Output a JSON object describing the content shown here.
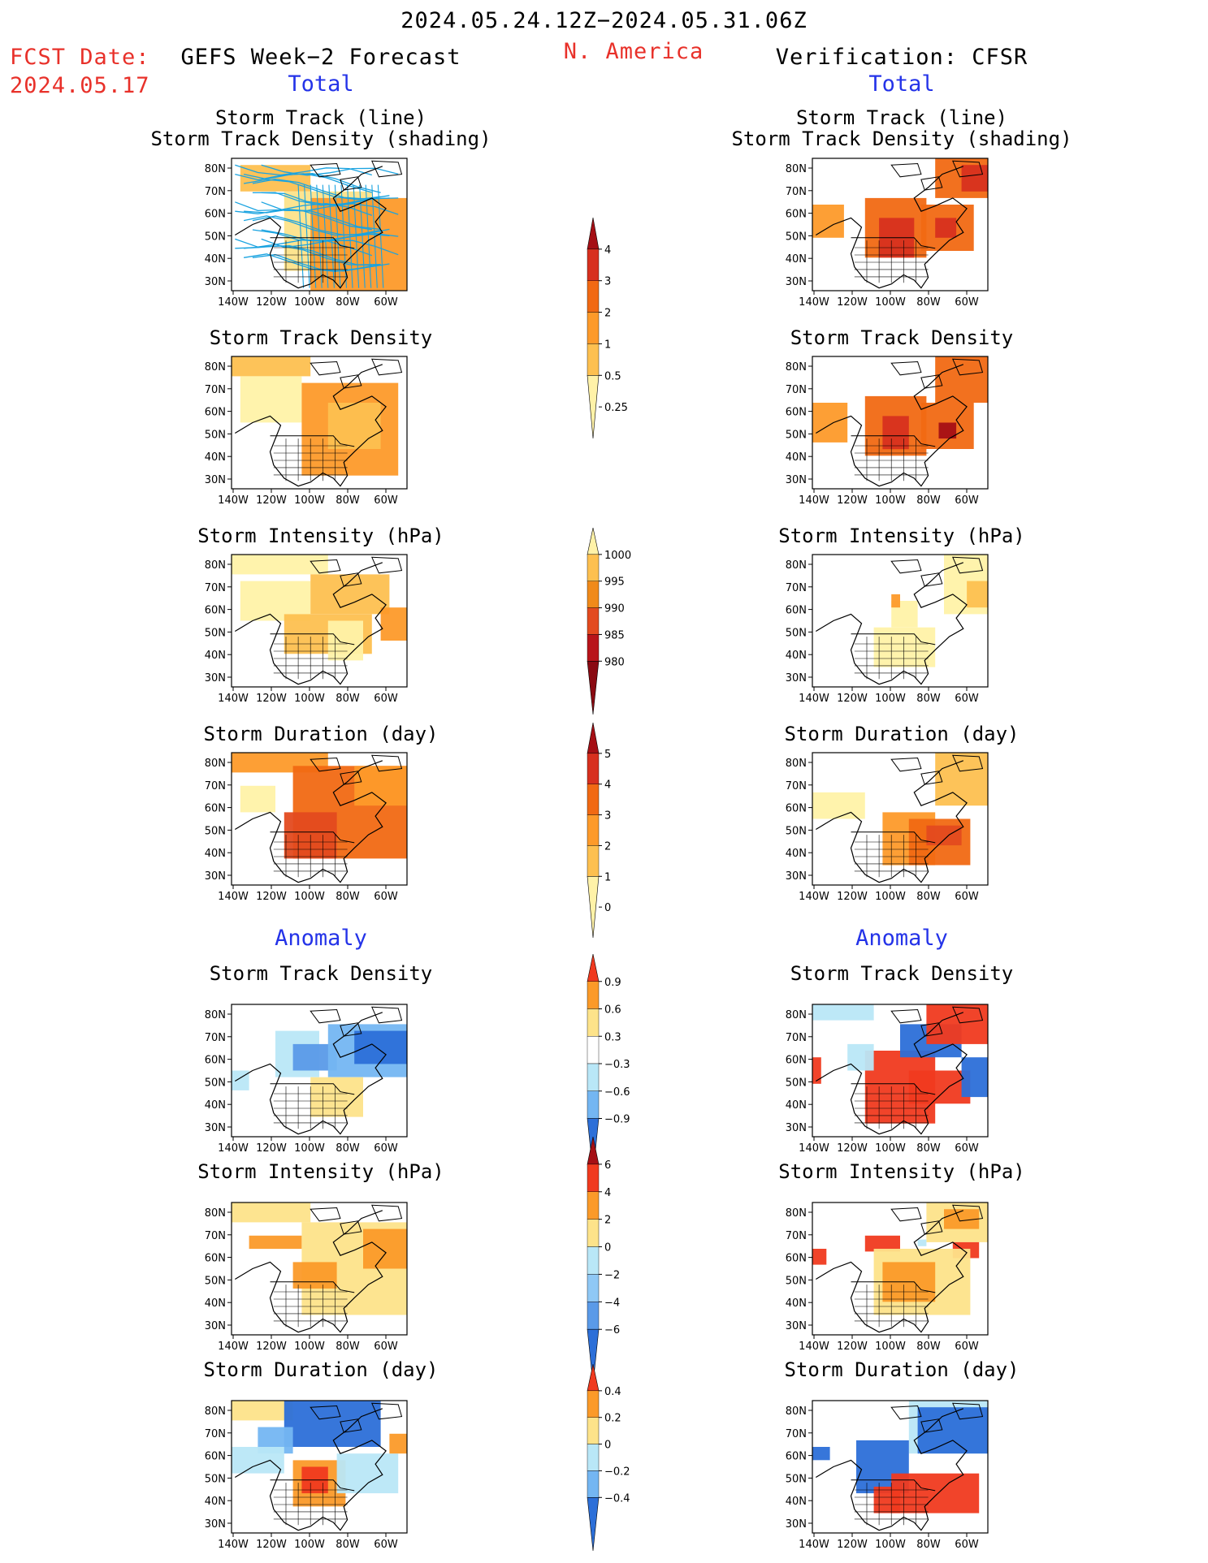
{
  "header": {
    "period": "2024.05.24.12Z−2024.05.31.06Z",
    "region": "N. America",
    "fcst_date_label": "FCST Date:",
    "fcst_date_value": "2024.05.17",
    "left_title": "GEFS Week−2 Forecast",
    "right_title": "Verification: CFSR"
  },
  "sections": {
    "total": "Total",
    "anomaly": "Anomaly"
  },
  "panel_titles": {
    "track_line": "Storm Track (line)",
    "track_shading": "Storm Track Density (shading)",
    "density": "Storm Track Density",
    "intensity": "Storm Intensity (hPa)",
    "duration": "Storm Duration (day)"
  },
  "axes": {
    "lat": [
      "80N",
      "70N",
      "60N",
      "50N",
      "40N",
      "30N"
    ],
    "lon": [
      "140W",
      "120W",
      "100W",
      "80W",
      "60W"
    ]
  },
  "colorbars": [
    {
      "labels": [
        "4",
        "3",
        "2",
        "1",
        "0.5",
        "0.25"
      ],
      "colors": [
        "#a50f15",
        "#d7301f",
        "#f16913",
        "#fd9a2a",
        "#fdc050",
        "#fff2a8"
      ]
    },
    {
      "labels": [
        "1000",
        "995",
        "990",
        "985",
        "980"
      ],
      "colors": [
        "#fff2a8",
        "#fdc050",
        "#f08a1a",
        "#e34a1f",
        "#b8141a",
        "#8a0a12"
      ]
    },
    {
      "labels": [
        "5",
        "4",
        "3",
        "2",
        "1",
        "0"
      ],
      "colors": [
        "#a50f15",
        "#d7301f",
        "#f16913",
        "#fd9a2a",
        "#fdc050",
        "#fff2a8"
      ]
    },
    {
      "labels": [
        "0.9",
        "0.6",
        "0.3",
        "−0.3",
        "−0.6",
        "−0.9"
      ],
      "colors": [
        "#f03a1f",
        "#fb9a29",
        "#fde38a",
        "#ffffff",
        "#b9e7f7",
        "#74b6f2",
        "#2c6fd8"
      ]
    },
    {
      "labels": [
        "6",
        "4",
        "2",
        "0",
        "−2",
        "−4",
        "−6"
      ],
      "colors": [
        "#a50f15",
        "#f03a1f",
        "#fb9a29",
        "#fde38a",
        "#b9e7f7",
        "#8fc8f5",
        "#5a9ae8",
        "#2c6fd8"
      ]
    },
    {
      "labels": [
        "0.4",
        "0.2",
        "0",
        "−0.2",
        "−0.4"
      ],
      "colors": [
        "#f03a1f",
        "#fb9a29",
        "#fde38a",
        "#b9e7f7",
        "#74b6f2",
        "#2c6fd8"
      ]
    }
  ],
  "colors": {
    "header_red": "#e8312a",
    "header_blue": "#2433e8",
    "track_line": "#1aa3e0"
  },
  "map_data": [
    {
      "key": "lt",
      "fills": [
        [
          0.05,
          0.05,
          0.4,
          0.2,
          "#fdc050"
        ],
        [
          0.3,
          0.25,
          0.5,
          0.6,
          "#fde38a"
        ],
        [
          0.45,
          0.3,
          0.55,
          0.7,
          "#fd9a2a"
        ]
      ],
      "tracks": true
    },
    {
      "key": "rt",
      "fills": [
        [
          0.0,
          0.35,
          0.18,
          0.25,
          "#fd9a2a"
        ],
        [
          0.3,
          0.3,
          0.35,
          0.45,
          "#f16913"
        ],
        [
          0.38,
          0.45,
          0.2,
          0.3,
          "#d7301f"
        ],
        [
          0.62,
          0.35,
          0.3,
          0.35,
          "#f16913"
        ],
        [
          0.7,
          0.45,
          0.12,
          0.15,
          "#d7301f"
        ],
        [
          0.7,
          0.0,
          0.3,
          0.3,
          "#f16913"
        ],
        [
          0.85,
          0.05,
          0.15,
          0.2,
          "#d7301f"
        ]
      ]
    },
    {
      "key": "ld",
      "fills": [
        [
          0.0,
          0.0,
          0.45,
          0.15,
          "#fdc050"
        ],
        [
          0.05,
          0.15,
          0.35,
          0.35,
          "#fff2a8"
        ],
        [
          0.4,
          0.2,
          0.55,
          0.7,
          "#fd9a2a"
        ],
        [
          0.55,
          0.35,
          0.3,
          0.35,
          "#fdc050"
        ]
      ]
    },
    {
      "key": "rd",
      "fills": [
        [
          0.0,
          0.35,
          0.2,
          0.3,
          "#fd9a2a"
        ],
        [
          0.3,
          0.3,
          0.35,
          0.45,
          "#f16913"
        ],
        [
          0.4,
          0.45,
          0.15,
          0.25,
          "#d7301f"
        ],
        [
          0.62,
          0.35,
          0.3,
          0.35,
          "#f16913"
        ],
        [
          0.72,
          0.5,
          0.1,
          0.12,
          "#a50f15"
        ],
        [
          0.7,
          0.0,
          0.3,
          0.35,
          "#f16913"
        ]
      ]
    },
    {
      "key": "li",
      "fills": [
        [
          0.0,
          0.0,
          0.55,
          0.15,
          "#fff2a8"
        ],
        [
          0.05,
          0.2,
          0.4,
          0.3,
          "#fff2a8"
        ],
        [
          0.45,
          0.15,
          0.45,
          0.3,
          "#fdc050"
        ],
        [
          0.3,
          0.45,
          0.5,
          0.3,
          "#fdc050"
        ],
        [
          0.85,
          0.4,
          0.15,
          0.25,
          "#fd9a2a"
        ],
        [
          0.55,
          0.5,
          0.2,
          0.3,
          "#fff2a8"
        ]
      ]
    },
    {
      "key": "ri",
      "fills": [
        [
          0.75,
          0.0,
          0.25,
          0.45,
          "#fff2a8"
        ],
        [
          0.45,
          0.35,
          0.15,
          0.2,
          "#fff2a8"
        ],
        [
          0.35,
          0.55,
          0.35,
          0.3,
          "#fff2a8"
        ],
        [
          0.88,
          0.2,
          0.12,
          0.2,
          "#fdc050"
        ],
        [
          0.45,
          0.3,
          0.05,
          0.1,
          "#fd9a2a"
        ]
      ]
    },
    {
      "key": "lu",
      "fills": [
        [
          0.0,
          0.0,
          0.55,
          0.15,
          "#fd9a2a"
        ],
        [
          0.05,
          0.25,
          0.2,
          0.2,
          "#fff2a8"
        ],
        [
          0.35,
          0.1,
          0.65,
          0.7,
          "#f16913"
        ],
        [
          0.3,
          0.45,
          0.3,
          0.35,
          "#e34a1f"
        ],
        [
          0.7,
          0.1,
          0.3,
          0.3,
          "#fd9a2a"
        ]
      ]
    },
    {
      "key": "ru",
      "fills": [
        [
          0.7,
          0.0,
          0.3,
          0.4,
          "#fdc050"
        ],
        [
          0.0,
          0.3,
          0.3,
          0.2,
          "#fff2a8"
        ],
        [
          0.4,
          0.45,
          0.3,
          0.4,
          "#fd9a2a"
        ],
        [
          0.55,
          0.5,
          0.35,
          0.35,
          "#f16913"
        ],
        [
          0.65,
          0.55,
          0.2,
          0.15,
          "#e34a1f"
        ]
      ]
    },
    {
      "key": "la",
      "fills": [
        [
          0.25,
          0.2,
          0.25,
          0.35,
          "#b9e7f7"
        ],
        [
          0.35,
          0.3,
          0.25,
          0.2,
          "#5a9ae8"
        ],
        [
          0.55,
          0.15,
          0.45,
          0.4,
          "#74b6f2"
        ],
        [
          0.7,
          0.2,
          0.3,
          0.25,
          "#2c6fd8"
        ],
        [
          0.45,
          0.55,
          0.3,
          0.3,
          "#fde38a"
        ],
        [
          0.0,
          0.5,
          0.1,
          0.15,
          "#b9e7f7"
        ]
      ]
    },
    {
      "key": "ra",
      "fills": [
        [
          0.0,
          0.0,
          0.35,
          0.12,
          "#b9e7f7"
        ],
        [
          0.0,
          0.4,
          0.05,
          0.2,
          "#f03a1f"
        ],
        [
          0.3,
          0.35,
          0.4,
          0.55,
          "#f03a1f"
        ],
        [
          0.55,
          0.5,
          0.35,
          0.25,
          "#f03a1f"
        ],
        [
          0.5,
          0.15,
          0.35,
          0.25,
          "#2c6fd8"
        ],
        [
          0.65,
          0.0,
          0.35,
          0.3,
          "#f03a1f"
        ],
        [
          0.85,
          0.4,
          0.15,
          0.3,
          "#2c6fd8"
        ],
        [
          0.2,
          0.3,
          0.15,
          0.2,
          "#b9e7f7"
        ]
      ]
    },
    {
      "key": "lia",
      "fills": [
        [
          0.0,
          0.0,
          0.45,
          0.15,
          "#fde38a"
        ],
        [
          0.1,
          0.25,
          0.3,
          0.1,
          "#fb9a29"
        ],
        [
          0.4,
          0.15,
          0.6,
          0.7,
          "#fde38a"
        ],
        [
          0.75,
          0.2,
          0.25,
          0.3,
          "#fb9a29"
        ],
        [
          0.35,
          0.45,
          0.25,
          0.2,
          "#fb9a29"
        ]
      ]
    },
    {
      "key": "ria",
      "fills": [
        [
          0.65,
          0.0,
          0.35,
          0.3,
          "#fde38a"
        ],
        [
          0.75,
          0.05,
          0.2,
          0.15,
          "#fb9a29"
        ],
        [
          0.8,
          0.3,
          0.15,
          0.12,
          "#f03a1f"
        ],
        [
          0.0,
          0.35,
          0.08,
          0.12,
          "#f03a1f"
        ],
        [
          0.3,
          0.25,
          0.2,
          0.12,
          "#f03a1f"
        ],
        [
          0.35,
          0.35,
          0.55,
          0.5,
          "#fde38a"
        ],
        [
          0.4,
          0.45,
          0.3,
          0.3,
          "#fb9a29"
        ],
        [
          0.6,
          0.28,
          0.05,
          0.05,
          "#b9e7f7"
        ]
      ]
    },
    {
      "key": "lua",
      "fills": [
        [
          0.0,
          0.0,
          0.35,
          0.15,
          "#fde38a"
        ],
        [
          0.3,
          0.0,
          0.55,
          0.35,
          "#2c6fd8"
        ],
        [
          0.15,
          0.2,
          0.2,
          0.2,
          "#74b6f2"
        ],
        [
          0.0,
          0.35,
          0.3,
          0.2,
          "#b9e7f7"
        ],
        [
          0.35,
          0.45,
          0.3,
          0.35,
          "#fb9a29"
        ],
        [
          0.4,
          0.5,
          0.15,
          0.2,
          "#f03a1f"
        ],
        [
          0.6,
          0.4,
          0.35,
          0.3,
          "#b9e7f7"
        ],
        [
          0.9,
          0.25,
          0.1,
          0.15,
          "#fb9a29"
        ]
      ]
    },
    {
      "key": "rua",
      "fills": [
        [
          0.55,
          0.0,
          0.45,
          0.4,
          "#b9e7f7"
        ],
        [
          0.6,
          0.05,
          0.4,
          0.35,
          "#2c6fd8"
        ],
        [
          0.0,
          0.35,
          0.1,
          0.1,
          "#2c6fd8"
        ],
        [
          0.25,
          0.3,
          0.3,
          0.4,
          "#2c6fd8"
        ],
        [
          0.45,
          0.55,
          0.5,
          0.3,
          "#f03a1f"
        ],
        [
          0.35,
          0.65,
          0.15,
          0.2,
          "#f03a1f"
        ]
      ]
    }
  ]
}
